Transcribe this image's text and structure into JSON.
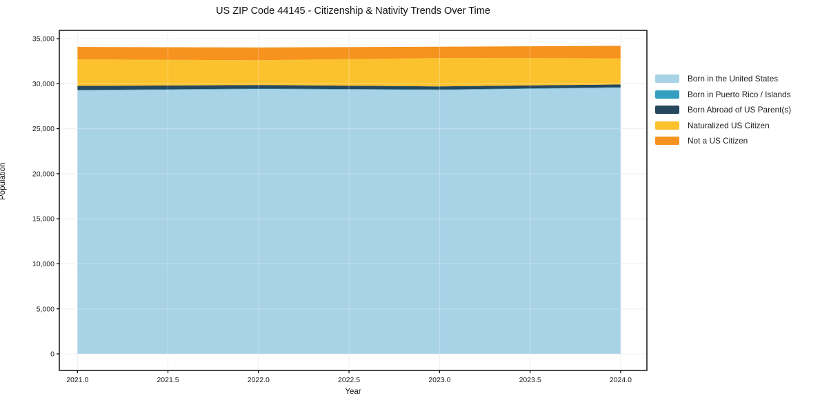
{
  "chart_data": {
    "type": "area",
    "stacked": true,
    "title": "US ZIP Code 44145 - Citizenship & Nativity Trends Over Time",
    "xlabel": "Year",
    "ylabel": "Population",
    "x": [
      2021,
      2022,
      2023,
      2024
    ],
    "series": [
      {
        "name": "Born in the United States",
        "color": "#A8D2E6",
        "values": [
          29250,
          29400,
          29300,
          29550
        ]
      },
      {
        "name": "Born in Puerto Rico / Islands",
        "color": "#359FC2",
        "values": [
          50,
          50,
          50,
          50
        ]
      },
      {
        "name": "Born Abroad of US Parent(s)",
        "color": "#25485E",
        "values": [
          450,
          400,
          350,
          320
        ]
      },
      {
        "name": "Naturalized US Citizen",
        "color": "#FCC22D",
        "values": [
          2950,
          2750,
          3150,
          2900
        ]
      },
      {
        "name": "Not a US Citizen",
        "color": "#F6921E",
        "values": [
          1380,
          1420,
          1250,
          1380
        ]
      }
    ],
    "xticks": [
      2021.0,
      2021.5,
      2022.0,
      2022.5,
      2023.0,
      2023.5,
      2024.0
    ],
    "xtick_labels": [
      "2021.0",
      "2021.5",
      "2022.0",
      "2022.5",
      "2023.0",
      "2023.5",
      "2024.0"
    ],
    "yticks": [
      0,
      5000,
      10000,
      15000,
      20000,
      25000,
      30000,
      35000
    ],
    "ytick_labels": [
      "0",
      "5,000",
      "10,000",
      "15,000",
      "20,000",
      "25,000",
      "30,000",
      "35,000"
    ],
    "xlim": [
      2020.9,
      2024.145
    ],
    "ylim": [
      -1840,
      35920
    ],
    "grid": true,
    "legend_position": "right-outside",
    "colors": {
      "spine": "#000000",
      "grid_under": "#e9e9e9",
      "grid_over": "rgba(255,255,255,0.32)",
      "tick_text": "#1a1a1a"
    }
  }
}
